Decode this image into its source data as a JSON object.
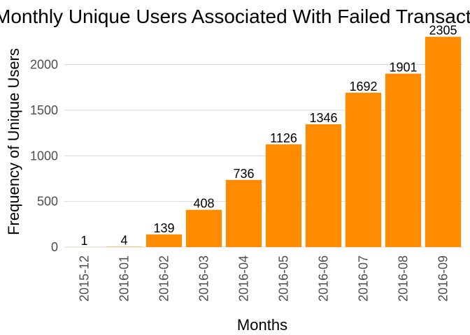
{
  "chart_data": {
    "type": "bar",
    "title": "Monthly Unique Users Associated With Failed Transactions",
    "xlabel": "Months",
    "ylabel": "Frequency of Unique Users",
    "categories": [
      "2015-12",
      "2016-01",
      "2016-02",
      "2016-03",
      "2016-04",
      "2016-05",
      "2016-06",
      "2016-07",
      "2016-08",
      "2016-09"
    ],
    "values": [
      1,
      4,
      139,
      408,
      736,
      1126,
      1346,
      1692,
      1901,
      2305
    ],
    "data_labels": [
      "1",
      "4",
      "139",
      "408",
      "736",
      "1126",
      "1346",
      "1692",
      "1901",
      "2305"
    ],
    "yticks": [
      0,
      500,
      1000,
      1500,
      2000
    ],
    "ytick_labels": [
      "0",
      "500",
      "1000",
      "1500",
      "2000"
    ],
    "ylim": [
      0,
      2400
    ],
    "bar_color": "#FF8C00",
    "grid": true,
    "legend": "none"
  }
}
